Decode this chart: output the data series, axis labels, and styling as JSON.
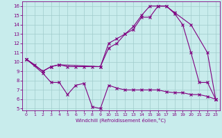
{
  "xlabel": "Windchill (Refroidissement éolien,°C)",
  "bg_color": "#c8ecec",
  "line_color": "#800080",
  "grid_color": "#a0cccc",
  "xlim": [
    -0.5,
    23.5
  ],
  "ylim": [
    4.8,
    16.5
  ],
  "xticks": [
    0,
    1,
    2,
    3,
    4,
    5,
    6,
    7,
    8,
    9,
    10,
    11,
    12,
    13,
    14,
    15,
    16,
    17,
    18,
    19,
    20,
    21,
    22,
    23
  ],
  "yticks": [
    5,
    6,
    7,
    8,
    9,
    10,
    11,
    12,
    13,
    14,
    15,
    16
  ],
  "line1_x": [
    0,
    1,
    2,
    3,
    4,
    5,
    6,
    7,
    8,
    9,
    10,
    11,
    12,
    13,
    14,
    15,
    16,
    17,
    18,
    19,
    20,
    21,
    22,
    23
  ],
  "line1_y": [
    10.3,
    9.7,
    9.0,
    9.5,
    9.7,
    9.5,
    9.5,
    9.5,
    9.5,
    9.5,
    12.0,
    12.5,
    13.0,
    13.8,
    15.0,
    16.0,
    16.0,
    16.0,
    15.2,
    14.0,
    11.0,
    7.8,
    7.8,
    6.0
  ],
  "line2_x": [
    0,
    2,
    3,
    4,
    9,
    10,
    11,
    12,
    13,
    14,
    15,
    16,
    17,
    18,
    20,
    22,
    23
  ],
  "line2_y": [
    10.3,
    9.0,
    9.5,
    9.7,
    9.5,
    11.5,
    12.0,
    13.0,
    13.5,
    14.8,
    14.8,
    16.0,
    16.0,
    15.3,
    14.0,
    11.0,
    6.0
  ],
  "line3_x": [
    0,
    2,
    3,
    4,
    5,
    6,
    7,
    8,
    9,
    10,
    11,
    12,
    13,
    14,
    15,
    16,
    17,
    18,
    19,
    20,
    21,
    22,
    23
  ],
  "line3_y": [
    10.3,
    8.8,
    7.8,
    7.8,
    6.5,
    7.5,
    7.7,
    5.2,
    5.0,
    7.5,
    7.2,
    7.0,
    7.0,
    7.0,
    7.0,
    7.0,
    6.8,
    6.7,
    6.7,
    6.5,
    6.5,
    6.3,
    6.0
  ]
}
